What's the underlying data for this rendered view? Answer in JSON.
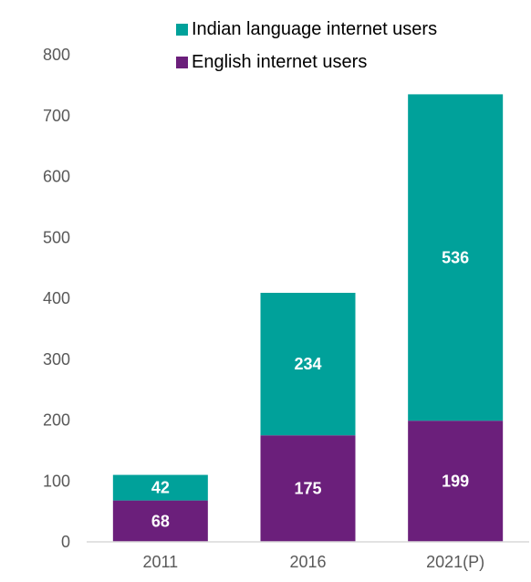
{
  "chart_data": {
    "type": "bar",
    "stacked": true,
    "categories": [
      "2011",
      "2016",
      "2021(P)"
    ],
    "series": [
      {
        "name": "English internet users",
        "color": "#6b1f7b",
        "values": [
          68,
          175,
          199
        ]
      },
      {
        "name": "Indian language internet users",
        "color": "#00a19a",
        "values": [
          42,
          234,
          536
        ]
      }
    ],
    "ylim": [
      0,
      800
    ],
    "yticks": [
      0,
      100,
      200,
      300,
      400,
      500,
      600,
      700,
      800
    ],
    "grid": false,
    "legend_position": "top",
    "title": "",
    "xlabel": "",
    "ylabel": ""
  }
}
